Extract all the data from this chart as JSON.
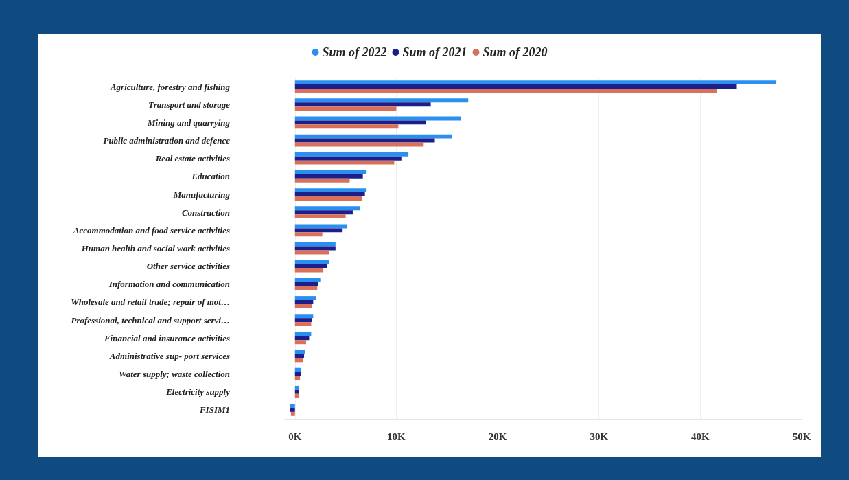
{
  "chart_data": {
    "type": "bar",
    "orientation": "horizontal",
    "categories": [
      "Agriculture, forestry and fishing",
      "Transport and storage",
      "Mining and quarrying",
      "Public administration and defence",
      "Real estate activities",
      "Education",
      "Manufacturing",
      "Construction",
      "Accommodation and food service activities",
      "Human health and social work activities",
      "Other service activities",
      "Information and communication",
      "Wholesale and retail trade; repair of mot…",
      "Professional, technical and support servi…",
      "Financial and insurance activities",
      "Administrative sup- port services",
      "Water supply; waste collection",
      "Electricity supply",
      "FISIM1"
    ],
    "series": [
      {
        "name": "Sum of 2022",
        "color": "#2b8ff0",
        "values": [
          47.5,
          17.1,
          16.4,
          15.5,
          11.2,
          7.0,
          7.0,
          6.4,
          5.1,
          4.0,
          3.4,
          2.5,
          2.1,
          1.8,
          1.6,
          1.0,
          0.6,
          0.4,
          -0.5
        ]
      },
      {
        "name": "Sum of 2021",
        "color": "#1c1f8a",
        "values": [
          43.6,
          13.4,
          12.9,
          13.8,
          10.5,
          6.7,
          6.9,
          5.7,
          4.7,
          4.0,
          3.2,
          2.3,
          1.8,
          1.7,
          1.4,
          0.9,
          0.6,
          0.4,
          -0.5
        ]
      },
      {
        "name": "Sum of 2020",
        "color": "#d9705a",
        "values": [
          41.6,
          10.0,
          10.2,
          12.7,
          9.8,
          5.4,
          6.6,
          5.0,
          2.7,
          3.4,
          2.8,
          2.2,
          1.7,
          1.6,
          1.1,
          0.8,
          0.5,
          0.4,
          -0.4
        ]
      }
    ],
    "xlim": [
      -1,
      50
    ],
    "xticks": [
      {
        "value": 0,
        "label": "0K"
      },
      {
        "value": 10,
        "label": "10K"
      },
      {
        "value": 20,
        "label": "20K"
      },
      {
        "value": 30,
        "label": "30K"
      },
      {
        "value": 40,
        "label": "40K"
      },
      {
        "value": 50,
        "label": "50K"
      }
    ],
    "grid": "x",
    "legend": "top"
  }
}
